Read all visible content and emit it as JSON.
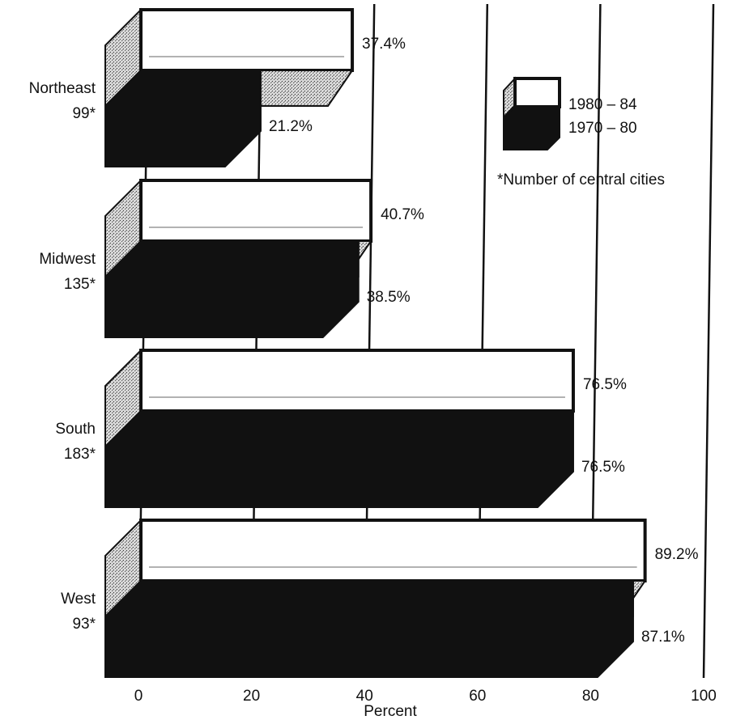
{
  "chart_data": {
    "type": "bar",
    "orientation": "horizontal",
    "style": "3d-paired-bars",
    "categories": [
      "Northeast",
      "Midwest",
      "South",
      "West"
    ],
    "category_counts": [
      "99*",
      "135*",
      "183*",
      "93*"
    ],
    "series": [
      {
        "name": "1980 – 84",
        "values": [
          37.4,
          40.7,
          76.5,
          89.2
        ],
        "labels": [
          "37.4%",
          "40.7%",
          "76.5%",
          "89.2%"
        ],
        "color": "#ffffff"
      },
      {
        "name": "1970 – 80",
        "values": [
          21.2,
          38.5,
          76.5,
          87.1
        ],
        "labels": [
          "21.2%",
          "38.5%",
          "76.5%",
          "87.1%"
        ],
        "color": "#111111"
      }
    ],
    "xlabel": "Percent",
    "xlim": [
      0,
      100
    ],
    "xticks": [
      "0",
      "20",
      "40",
      "60",
      "80",
      "100"
    ],
    "footnote": "*Number of central cities",
    "legend_position": "right",
    "grid": true
  }
}
